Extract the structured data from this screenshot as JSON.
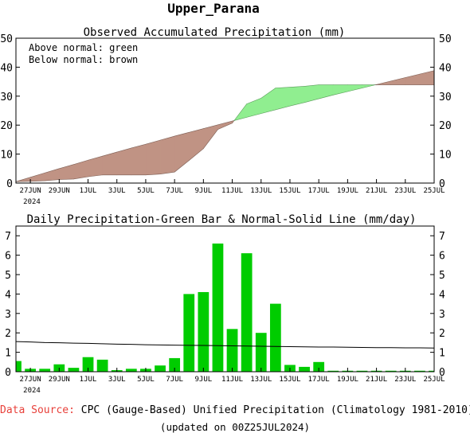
{
  "region": "Upper_Parana",
  "footer": {
    "source_label": "Data Source:",
    "source_text": "CPC (Gauge-Based) Unified Precipitation (Climatology 1981-2010)",
    "updated": "(updated on 00Z25JUL2024)"
  },
  "colors": {
    "above": "#90ee90",
    "below": "#c09384",
    "bar": "#00cc00",
    "line": "#000000",
    "source_label": "#e8403a"
  },
  "x_ticks": [
    "27JUN",
    "29JUN",
    "1JUL",
    "3JUL",
    "5JUL",
    "7JUL",
    "9JUL",
    "11JUL",
    "13JUL",
    "15JUL",
    "17JUL",
    "19JUL",
    "21JUL",
    "23JUL",
    "25JUL"
  ],
  "x_year_label": "2024",
  "chart_data": [
    {
      "type": "area",
      "title": "Observed Accumulated Precipitation (mm)",
      "legend": [
        "Above normal: green",
        "Below normal: brown"
      ],
      "legend_position": "top-left",
      "ylim": [
        0,
        50
      ],
      "yticks": [
        0,
        10,
        20,
        30,
        40,
        50
      ],
      "x_start": "26JUN",
      "x_end": "25JUL",
      "x": [
        "26JUN",
        "27JUN",
        "28JUN",
        "29JUN",
        "30JUN",
        "1JUL",
        "2JUL",
        "3JUL",
        "4JUL",
        "5JUL",
        "6JUL",
        "7JUL",
        "8JUL",
        "9JUL",
        "10JUL",
        "11JUL",
        "12JUL",
        "13JUL",
        "14JUL",
        "15JUL",
        "16JUL",
        "17JUL",
        "18JUL",
        "19JUL",
        "20JUL",
        "21JUL",
        "22JUL",
        "23JUL",
        "24JUL",
        "25JUL"
      ],
      "series": [
        {
          "name": "Observed",
          "values": [
            0.5,
            0.6,
            0.8,
            1.2,
            1.4,
            2.2,
            2.8,
            2.8,
            2.8,
            2.8,
            3.1,
            3.8,
            7.8,
            11.9,
            18.5,
            20.7,
            27.3,
            29.3,
            32.8,
            33.1,
            33.4,
            33.9,
            33.9,
            33.9,
            33.9,
            33.9,
            33.9,
            33.9,
            33.9,
            33.9
          ]
        },
        {
          "name": "Normal",
          "values": [
            0.5,
            2.0,
            3.5,
            5.0,
            6.4,
            7.9,
            9.3,
            10.7,
            12.1,
            13.4,
            14.8,
            16.2,
            17.5,
            18.8,
            20.1,
            21.4,
            22.7,
            24.0,
            25.3,
            26.6,
            27.8,
            29.1,
            30.4,
            31.6,
            32.8,
            34.0,
            35.2,
            36.4,
            37.6,
            38.8
          ]
        }
      ]
    },
    {
      "type": "bar",
      "title": "Daily Precipitation-Green Bar & Normal-Solid Line (mm/day)",
      "ylim": [
        0,
        7.5
      ],
      "yticks": [
        0,
        1,
        2,
        3,
        4,
        5,
        6,
        7
      ],
      "x": [
        "26JUN",
        "27JUN",
        "28JUN",
        "29JUN",
        "30JUN",
        "1JUL",
        "2JUL",
        "3JUL",
        "4JUL",
        "5JUL",
        "6JUL",
        "7JUL",
        "8JUL",
        "9JUL",
        "10JUL",
        "11JUL",
        "12JUL",
        "13JUL",
        "14JUL",
        "15JUL",
        "16JUL",
        "17JUL",
        "18JUL",
        "19JUL",
        "20JUL",
        "21JUL",
        "22JUL",
        "23JUL",
        "24JUL",
        "25JUL"
      ],
      "series": [
        {
          "name": "Daily",
          "values": [
            0.55,
            0.15,
            0.15,
            0.38,
            0.2,
            0.75,
            0.62,
            0.08,
            0.15,
            0.15,
            0.32,
            0.7,
            4.0,
            4.1,
            6.6,
            2.2,
            6.1,
            2.0,
            3.5,
            0.35,
            0.25,
            0.5,
            0.05,
            0.05,
            0.05,
            0.05,
            0.05,
            0.05,
            0.05,
            0.05
          ]
        },
        {
          "name": "Normal",
          "values": [
            1.55,
            1.53,
            1.5,
            1.49,
            1.47,
            1.46,
            1.44,
            1.42,
            1.41,
            1.39,
            1.38,
            1.37,
            1.36,
            1.35,
            1.34,
            1.33,
            1.32,
            1.31,
            1.3,
            1.29,
            1.28,
            1.27,
            1.27,
            1.26,
            1.25,
            1.24,
            1.24,
            1.23,
            1.23,
            1.22
          ]
        }
      ]
    }
  ]
}
